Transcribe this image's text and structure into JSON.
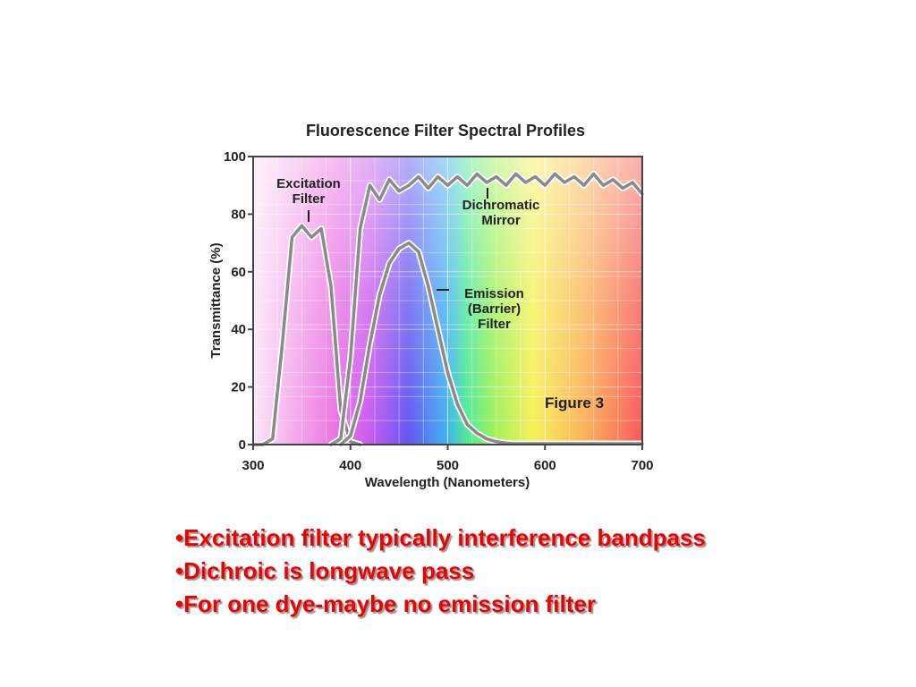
{
  "chart_data": {
    "type": "line",
    "title": "Fluorescence Filter Spectral Profiles",
    "x_label": "Wavelength (Nanometers)",
    "y_label": "Transmittance (%)",
    "annotation": "Figure 3",
    "x": [
      300,
      310,
      320,
      330,
      340,
      350,
      360,
      370,
      380,
      390,
      400,
      410,
      420,
      430,
      440,
      450,
      460,
      470,
      480,
      490,
      500,
      510,
      520,
      530,
      540,
      550,
      560,
      570,
      580,
      590,
      600,
      610,
      620,
      630,
      640,
      650,
      660,
      670,
      680,
      690,
      700
    ],
    "series": [
      {
        "name": "Excitation Filter",
        "color": "#8a8a8a",
        "values": [
          0,
          0,
          2,
          35,
          72,
          76,
          72,
          75,
          55,
          12,
          1,
          0,
          null,
          null,
          null,
          null,
          null,
          null,
          null,
          null,
          null,
          null,
          null,
          null,
          null,
          null,
          null,
          null,
          null,
          null,
          null,
          null,
          null,
          null,
          null,
          null,
          null,
          null,
          null,
          null,
          null
        ]
      },
      {
        "name": "Dichromatic Mirror",
        "color": "#8a8a8a",
        "values": [
          null,
          null,
          null,
          null,
          null,
          null,
          null,
          null,
          0,
          2,
          30,
          75,
          90,
          85,
          92,
          88,
          90,
          93,
          89,
          93,
          90,
          93,
          90,
          94,
          91,
          93,
          90,
          94,
          91,
          93,
          90,
          94,
          91,
          93,
          90,
          94,
          90,
          92,
          89,
          91,
          87
        ]
      },
      {
        "name": "Emission (Barrier) Filter",
        "color": "#8a8a8a",
        "values": [
          null,
          null,
          null,
          null,
          null,
          null,
          null,
          null,
          null,
          0,
          3,
          15,
          35,
          52,
          63,
          68,
          70,
          67,
          55,
          40,
          25,
          14,
          7,
          4,
          2,
          1,
          0.5,
          0.3,
          0.3,
          0.3,
          0.3,
          0.3,
          0.3,
          0.3,
          0.3,
          0.3,
          0.3,
          0.3,
          0.3,
          0.3,
          0.3
        ]
      }
    ],
    "xlim": [
      300,
      700
    ],
    "ylim": [
      0,
      100
    ],
    "xticks": [
      300,
      400,
      500,
      600,
      700
    ],
    "yticks": [
      0,
      20,
      40,
      60,
      80,
      100
    ],
    "grid": true
  },
  "bullets": [
    "•Excitation filter typically interference bandpass",
    "•Dichroic is longwave pass",
    "•For one dye-maybe no emission filter"
  ]
}
